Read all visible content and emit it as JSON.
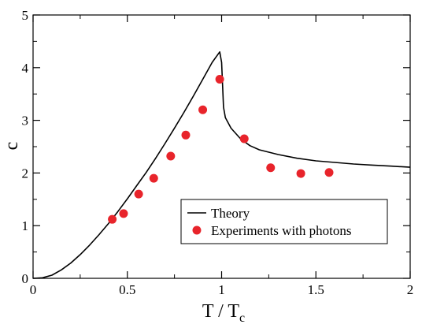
{
  "chart_data": {
    "type": "scatter",
    "xlim": [
      0,
      2
    ],
    "ylim": [
      0,
      5
    ],
    "x_ticks": [
      0,
      0.5,
      1,
      1.5,
      2
    ],
    "x_tick_labels": [
      "0",
      "0.5",
      "1",
      "1.5",
      "2"
    ],
    "y_ticks": [
      0,
      1,
      2,
      3,
      4,
      5
    ],
    "y_tick_labels": [
      "0",
      "1",
      "2",
      "3",
      "4",
      "5"
    ],
    "xlabel": {
      "main": "T / T",
      "subscript": "c"
    },
    "ylabel": "c",
    "grid": false,
    "legend_position": "lower-right",
    "series": [
      {
        "name": "Theory",
        "kind": "line",
        "color": "#000000",
        "x": [
          0,
          0.05,
          0.1,
          0.15,
          0.2,
          0.25,
          0.3,
          0.35,
          0.4,
          0.45,
          0.5,
          0.55,
          0.6,
          0.65,
          0.7,
          0.75,
          0.8,
          0.85,
          0.9,
          0.95,
          0.99,
          1.0,
          1.01,
          1.02,
          1.05,
          1.1,
          1.15,
          1.2,
          1.3,
          1.4,
          1.5,
          1.6,
          1.7,
          1.8,
          1.9,
          2.0
        ],
        "y": [
          0,
          0.01,
          0.06,
          0.16,
          0.29,
          0.45,
          0.63,
          0.83,
          1.04,
          1.27,
          1.51,
          1.76,
          2.01,
          2.28,
          2.56,
          2.85,
          3.15,
          3.46,
          3.78,
          4.1,
          4.3,
          4.1,
          3.25,
          3.05,
          2.85,
          2.65,
          2.52,
          2.44,
          2.35,
          2.28,
          2.23,
          2.2,
          2.17,
          2.15,
          2.13,
          2.11
        ]
      },
      {
        "name": "Experiments with photons",
        "kind": "scatter",
        "color": "#e8242b",
        "x": [
          0.42,
          0.48,
          0.56,
          0.64,
          0.73,
          0.81,
          0.9,
          0.99,
          1.12,
          1.26,
          1.42,
          1.57
        ],
        "y": [
          1.12,
          1.23,
          1.6,
          1.9,
          2.32,
          2.72,
          3.2,
          3.78,
          2.65,
          2.1,
          1.99,
          2.01
        ]
      }
    ]
  }
}
